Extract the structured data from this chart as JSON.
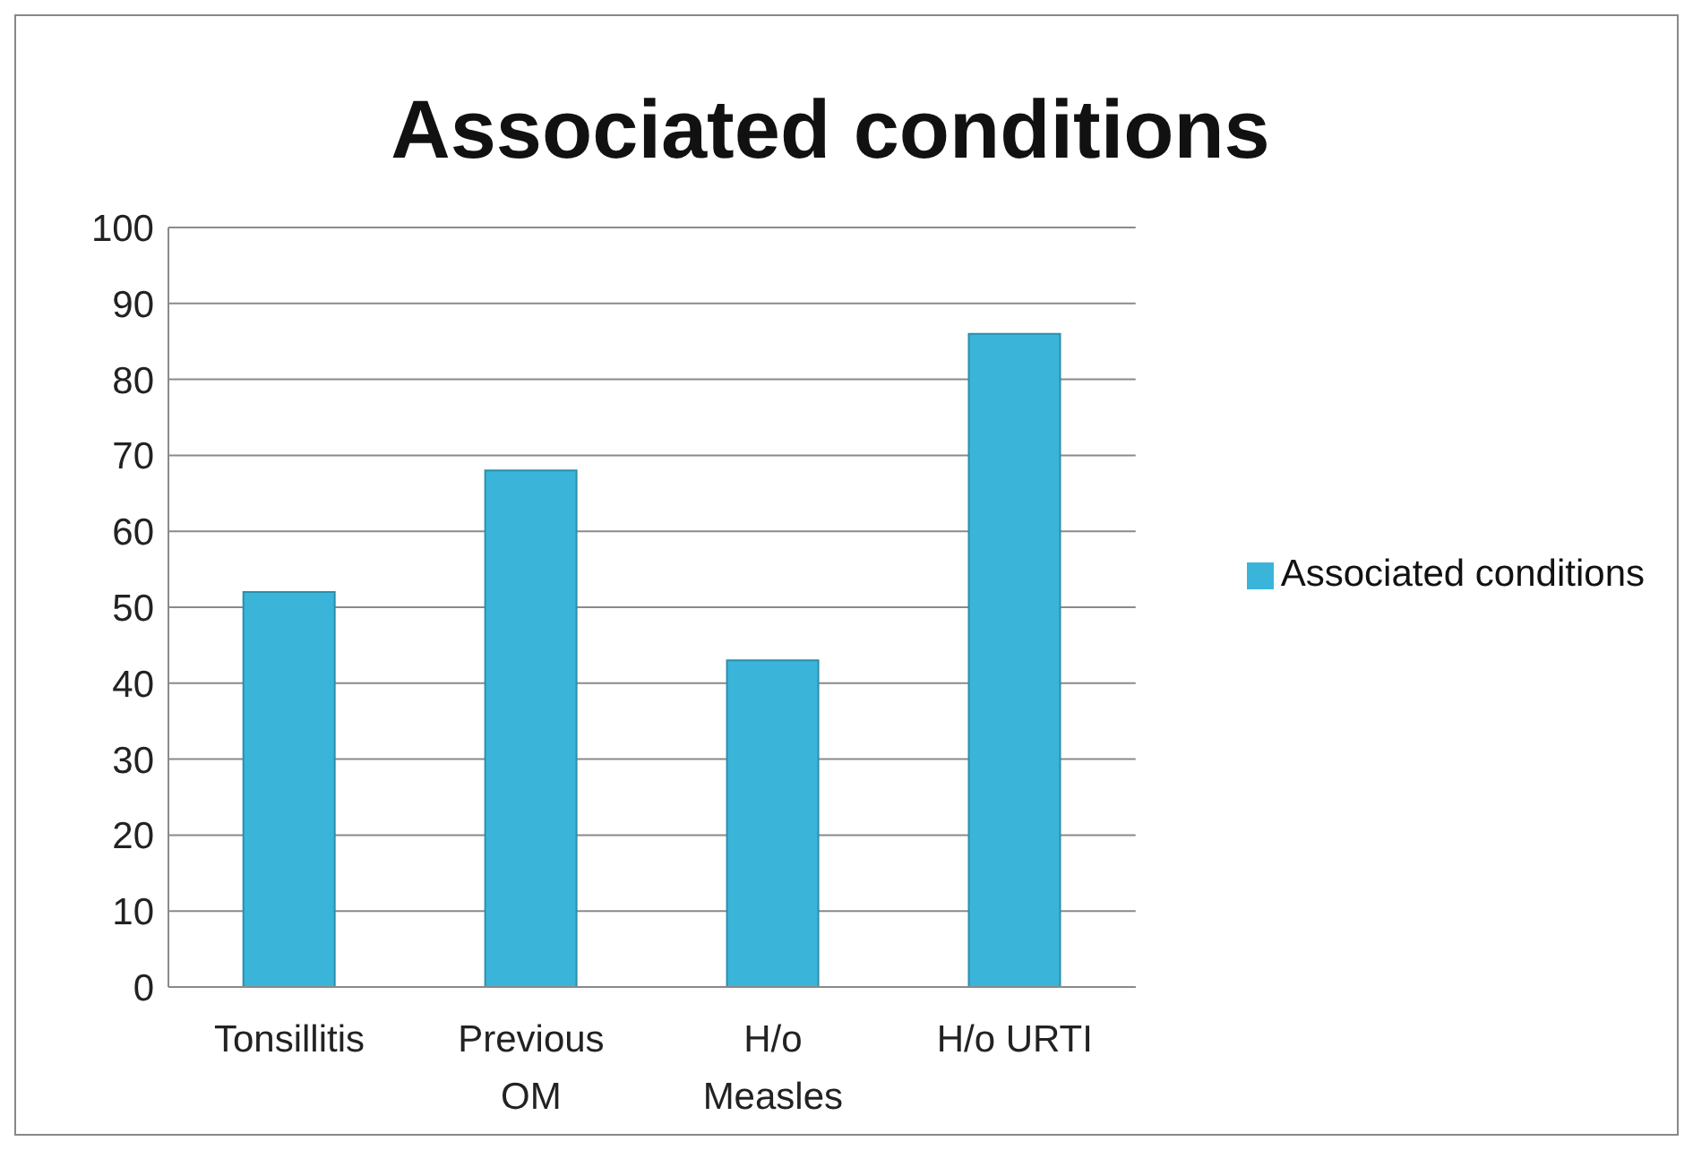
{
  "chart_data": {
    "type": "bar",
    "title": "Associated conditions",
    "categories": [
      "Tonsillitis",
      "Previous OM",
      "H/o Measles",
      "H/o URTI"
    ],
    "series": [
      {
        "name": "Associated conditions",
        "color": "#3ab5d9",
        "values": [
          52,
          68,
          43,
          86
        ]
      }
    ],
    "ylim": [
      0,
      100
    ],
    "yticks": [
      0,
      10,
      20,
      30,
      40,
      50,
      60,
      70,
      80,
      90,
      100
    ],
    "grid": "y",
    "legend": "right"
  }
}
